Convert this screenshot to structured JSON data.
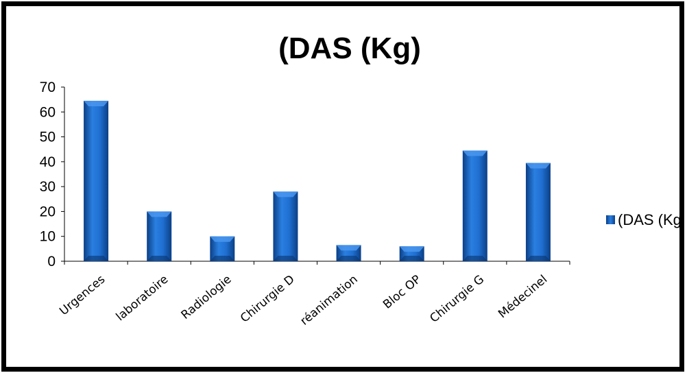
{
  "chart_data": {
    "type": "bar",
    "title": "(DAS (Kg)",
    "categories": [
      "Urgences",
      "laboratoire",
      "Radiologie",
      "Chirurgie D",
      "réanimation",
      "Bloc OP",
      "Chirurgie G",
      "Médecinel"
    ],
    "series": [
      {
        "name": "(DAS (Kg",
        "values": [
          64.5,
          20,
          10,
          28,
          6.5,
          6,
          44.5,
          39.5
        ]
      }
    ],
    "ylim": [
      0,
      70
    ],
    "yticks": [
      0,
      10,
      20,
      30,
      40,
      50,
      60,
      70
    ],
    "xlabel": "",
    "ylabel": "",
    "grid": false,
    "legend_position": "right",
    "bar_color": "#1f6fd1",
    "bar_color_dark": "#0b3f86"
  }
}
